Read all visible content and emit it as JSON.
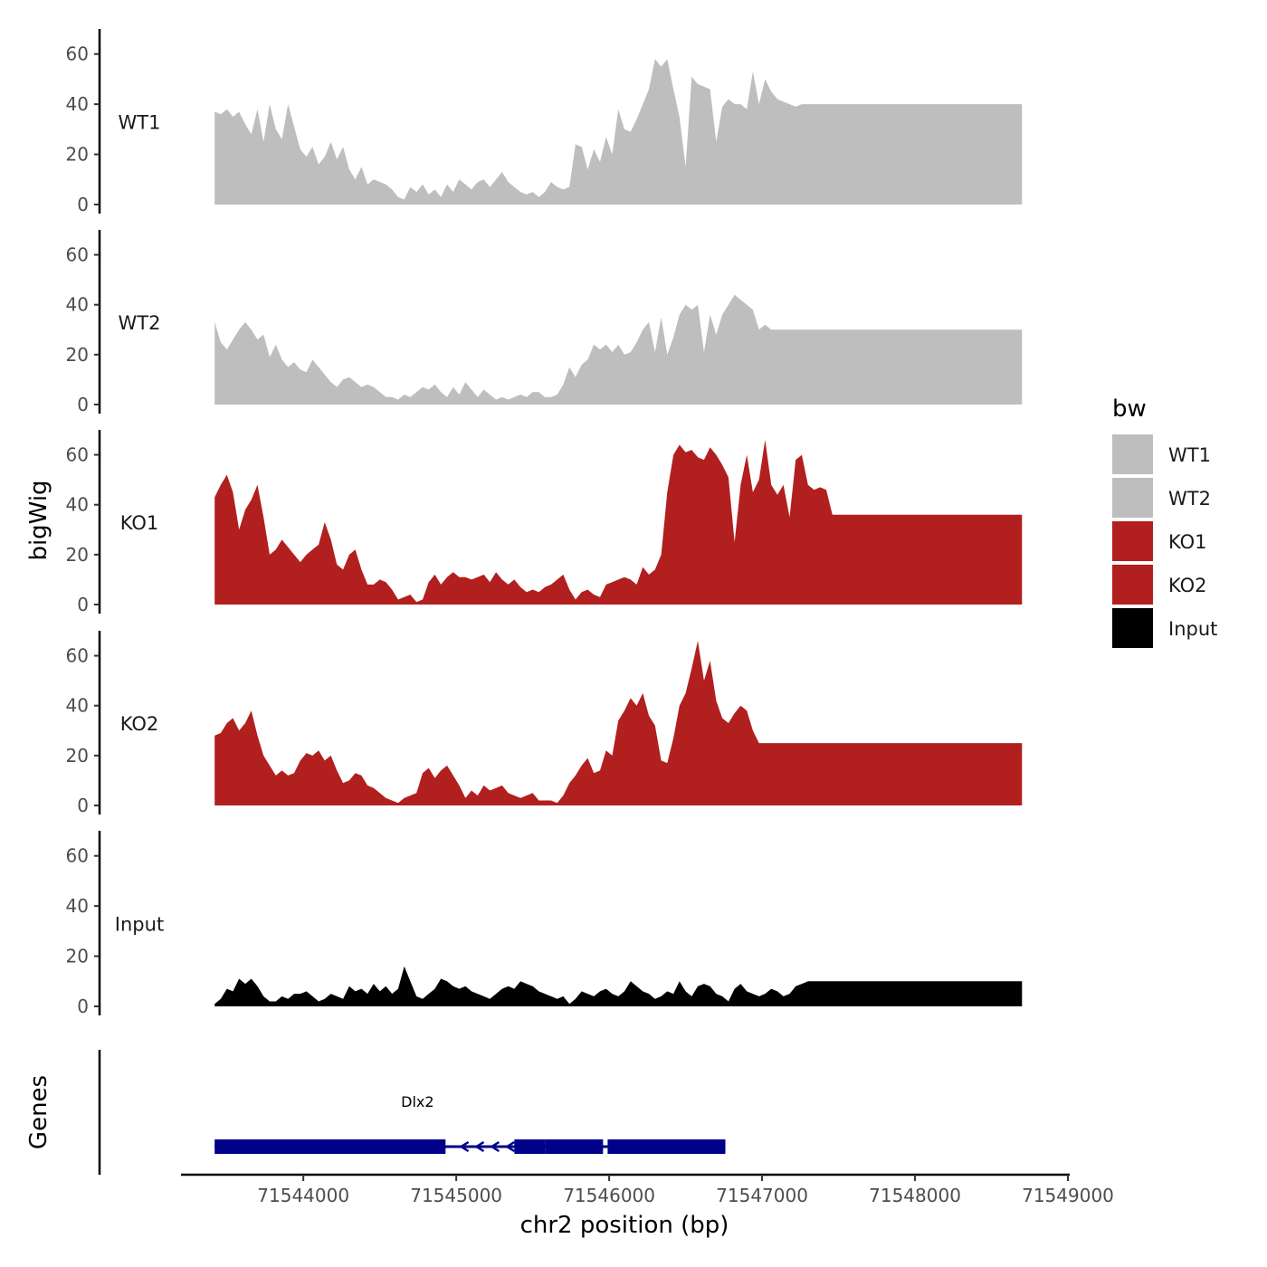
{
  "chart_data": {
    "type": "area",
    "xlabel": "chr2 position (bp)",
    "ylabel": "bigWig",
    "gene_panel_label": "Genes",
    "xlim": [
      71543200,
      71549000
    ],
    "x_ticks": [
      71544000,
      71545000,
      71546000,
      71547000,
      71548000,
      71549000
    ],
    "x_tick_labels": [
      "71544000",
      "71545000",
      "71546000",
      "71547000",
      "71548000",
      "71549000"
    ],
    "ylim": [
      0,
      70
    ],
    "y_ticks": [
      0,
      20,
      40,
      60
    ],
    "y_tick_labels": [
      "0",
      "20",
      "40",
      "60"
    ],
    "legend": {
      "title": "bw",
      "entries": [
        {
          "label": "WT1",
          "color": "#bebebe"
        },
        {
          "label": "WT2",
          "color": "#bebebe"
        },
        {
          "label": "KO1",
          "color": "#b21f1f"
        },
        {
          "label": "KO2",
          "color": "#b21f1f"
        },
        {
          "label": "Input",
          "color": "#000000"
        }
      ]
    },
    "x": [
      71543420,
      71543460,
      71543500,
      71543540,
      71543580,
      71543620,
      71543660,
      71543700,
      71543740,
      71543780,
      71543820,
      71543860,
      71543900,
      71543940,
      71543980,
      71544020,
      71544060,
      71544100,
      71544140,
      71544180,
      71544220,
      71544260,
      71544300,
      71544340,
      71544380,
      71544420,
      71544460,
      71544500,
      71544540,
      71544580,
      71544620,
      71544660,
      71544700,
      71544740,
      71544780,
      71544820,
      71544860,
      71544900,
      71544940,
      71544980,
      71545020,
      71545060,
      71545100,
      71545140,
      71545180,
      71545220,
      71545260,
      71545300,
      71545340,
      71545380,
      71545420,
      71545460,
      71545500,
      71545540,
      71545580,
      71545620,
      71545660,
      71545700,
      71545740,
      71545780,
      71545820,
      71545860,
      71545900,
      71545940,
      71545980,
      71546020,
      71546060,
      71546100,
      71546140,
      71546180,
      71546220,
      71546260,
      71546300,
      71546340,
      71546380,
      71546420,
      71546460,
      71546500,
      71546540,
      71546580,
      71546620,
      71546660,
      71546700,
      71546740,
      71546780,
      71546820,
      71546860,
      71546900,
      71546940,
      71546980,
      71547020,
      71547060,
      71547100,
      71547140,
      71547180,
      71547220,
      71547260,
      71547300,
      71547340,
      71547380,
      71547420,
      71547460,
      71547500,
      71547540,
      71547580,
      71547620,
      71547660,
      71547700,
      71547740,
      71547780,
      71547820,
      71547860,
      71547900,
      71547940,
      71547980,
      71548020,
      71548060,
      71548100,
      71548140,
      71548180,
      71548220,
      71548260,
      71548300,
      71548340,
      71548380,
      71548420,
      71548460,
      71548500,
      71548540,
      71548580,
      71548620,
      71548660,
      71548700
    ],
    "series": [
      {
        "name": "WT1",
        "color": "#bebebe",
        "values": [
          37,
          36,
          38,
          35,
          37,
          32,
          28,
          38,
          25,
          40,
          30,
          26,
          40,
          31,
          22,
          19,
          23,
          16,
          19,
          25,
          18,
          23,
          14,
          10,
          15,
          8,
          10,
          9,
          8,
          6,
          3,
          2,
          7,
          5,
          8,
          4,
          6,
          3,
          8,
          5,
          10,
          8,
          6,
          9,
          10,
          7,
          10,
          13,
          9,
          7,
          5,
          4,
          5,
          3,
          5,
          9,
          7,
          6,
          7,
          24,
          23,
          14,
          22,
          17,
          27,
          20,
          38,
          30,
          29,
          34,
          40,
          46,
          58,
          55,
          58,
          46,
          35,
          15,
          51,
          48,
          47,
          46,
          25,
          39,
          42,
          40,
          40,
          38,
          53,
          40,
          50,
          45,
          42,
          41,
          40,
          39,
          40,
          40,
          40,
          40,
          40,
          40,
          40,
          40,
          40,
          40,
          40,
          40,
          40,
          40,
          40,
          40,
          40,
          40,
          40,
          40,
          40,
          40,
          40,
          40,
          40,
          40,
          40,
          40,
          40,
          40,
          40,
          40,
          40,
          40,
          40,
          40,
          40
        ]
      },
      {
        "name": "WT2",
        "color": "#bebebe",
        "values": [
          33,
          25,
          22,
          26,
          30,
          33,
          30,
          26,
          28,
          19,
          24,
          18,
          15,
          17,
          14,
          13,
          18,
          15,
          12,
          9,
          7,
          10,
          11,
          9,
          7,
          8,
          7,
          5,
          3,
          3,
          2,
          4,
          3,
          5,
          7,
          6,
          8,
          5,
          3,
          7,
          4,
          9,
          6,
          3,
          6,
          4,
          2,
          3,
          2,
          3,
          4,
          3,
          5,
          5,
          3,
          3,
          4,
          8,
          15,
          11,
          16,
          18,
          24,
          22,
          24,
          21,
          24,
          20,
          21,
          25,
          30,
          33,
          21,
          35,
          20,
          27,
          36,
          40,
          38,
          40,
          21,
          36,
          28,
          36,
          40,
          44,
          42,
          40,
          38,
          30,
          32,
          30,
          30,
          30,
          30,
          30,
          30,
          30,
          30,
          30,
          30,
          30,
          30,
          30,
          30,
          30,
          30,
          30,
          30,
          30,
          30,
          30,
          30,
          30,
          30,
          30,
          30,
          30,
          30,
          30,
          30,
          30,
          30,
          30,
          30,
          30,
          30,
          30,
          30,
          30,
          30,
          30,
          30
        ]
      },
      {
        "name": "KO1",
        "color": "#b21f1f",
        "values": [
          43,
          48,
          52,
          45,
          30,
          38,
          42,
          48,
          35,
          20,
          22,
          26,
          23,
          20,
          17,
          20,
          22,
          24,
          33,
          26,
          16,
          14,
          20,
          22,
          14,
          8,
          8,
          10,
          9,
          6,
          2,
          3,
          4,
          1,
          2,
          9,
          12,
          8,
          11,
          13,
          11,
          11,
          10,
          11,
          12,
          9,
          13,
          10,
          8,
          10,
          7,
          5,
          6,
          5,
          7,
          8,
          10,
          12,
          6,
          2,
          5,
          6,
          4,
          3,
          8,
          9,
          10,
          11,
          10,
          8,
          15,
          12,
          14,
          20,
          45,
          60,
          64,
          61,
          62,
          59,
          58,
          63,
          60,
          56,
          51,
          25,
          48,
          60,
          45,
          50,
          66,
          48,
          44,
          48,
          35,
          58,
          60,
          48,
          46,
          47,
          46,
          36,
          36,
          36,
          36,
          36,
          36,
          36,
          36,
          36,
          36,
          36,
          36,
          36,
          36,
          36,
          36,
          36,
          36,
          36,
          36,
          36,
          36,
          36,
          36,
          36,
          36,
          36,
          36,
          36,
          36,
          36,
          36
        ]
      },
      {
        "name": "KO2",
        "color": "#b21f1f",
        "values": [
          28,
          29,
          33,
          35,
          30,
          33,
          38,
          28,
          20,
          16,
          12,
          14,
          12,
          13,
          18,
          21,
          20,
          22,
          18,
          20,
          14,
          9,
          10,
          13,
          12,
          8,
          7,
          5,
          3,
          2,
          1,
          3,
          4,
          5,
          13,
          15,
          11,
          14,
          16,
          12,
          8,
          3,
          6,
          4,
          8,
          6,
          7,
          8,
          5,
          4,
          3,
          4,
          5,
          2,
          2,
          2,
          1,
          4,
          9,
          12,
          16,
          19,
          13,
          14,
          22,
          20,
          34,
          38,
          43,
          40,
          45,
          36,
          32,
          18,
          17,
          27,
          40,
          45,
          55,
          66,
          50,
          58,
          42,
          35,
          33,
          37,
          40,
          38,
          30,
          25,
          25,
          25,
          25,
          25,
          25,
          25,
          25,
          25,
          25,
          25,
          25,
          25,
          25,
          25,
          25,
          25,
          25,
          25,
          25,
          25,
          25,
          25,
          25,
          25,
          25,
          25,
          25,
          25,
          25,
          25,
          25,
          25,
          25,
          25,
          25,
          25,
          25,
          25,
          25,
          25,
          25,
          25,
          25
        ]
      },
      {
        "name": "Input",
        "color": "#000000",
        "values": [
          1,
          3,
          7,
          6,
          11,
          9,
          11,
          8,
          4,
          2,
          2,
          4,
          3,
          5,
          5,
          6,
          4,
          2,
          3,
          5,
          4,
          3,
          8,
          6,
          7,
          5,
          9,
          6,
          8,
          5,
          7,
          16,
          10,
          4,
          3,
          5,
          7,
          11,
          10,
          8,
          7,
          8,
          6,
          5,
          4,
          3,
          5,
          7,
          8,
          7,
          10,
          9,
          8,
          6,
          5,
          4,
          3,
          4,
          1,
          3,
          6,
          5,
          4,
          6,
          7,
          5,
          4,
          6,
          10,
          8,
          6,
          5,
          3,
          4,
          6,
          5,
          10,
          6,
          4,
          8,
          9,
          8,
          5,
          4,
          2,
          7,
          9,
          6,
          5,
          4,
          5,
          7,
          6,
          4,
          5,
          8,
          9,
          10,
          10,
          10,
          10,
          10,
          10,
          10,
          10,
          10,
          10,
          10,
          10,
          10,
          10,
          10,
          10,
          10,
          10,
          10,
          10,
          10,
          10,
          10,
          10,
          10,
          10,
          10,
          10,
          10,
          10,
          10,
          10,
          10,
          10,
          10,
          10
        ]
      }
    ],
    "gene": {
      "name": "Dlx2",
      "strand": "-",
      "color": "#00008b",
      "transcript_start": 71543420,
      "transcript_end": 71546760,
      "exons": [
        {
          "start": 71543420,
          "end": 71544930,
          "kind": "exon"
        },
        {
          "start": 71545380,
          "end": 71545580,
          "kind": "exon"
        },
        {
          "start": 71545580,
          "end": 71545960,
          "kind": "exon"
        },
        {
          "start": 71545990,
          "end": 71546760,
          "kind": "exon"
        }
      ],
      "intron_arrow_positions": [
        71545050,
        71545150,
        71545250,
        71545350
      ]
    }
  }
}
